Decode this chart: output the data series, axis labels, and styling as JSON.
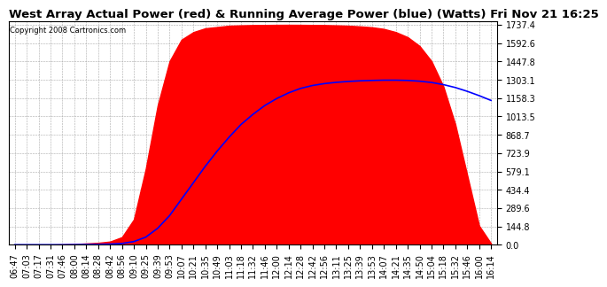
{
  "title": "West Array Actual Power (red) & Running Average Power (blue) (Watts) Fri Nov 21 16:25",
  "copyright": "Copyright 2008 Cartronics.com",
  "y_ticks": [
    0.0,
    144.8,
    289.6,
    434.4,
    579.1,
    723.9,
    868.7,
    1013.5,
    1158.3,
    1303.1,
    1447.8,
    1592.6,
    1737.4
  ],
  "x_labels": [
    "06:47",
    "07:03",
    "07:17",
    "07:31",
    "07:46",
    "08:00",
    "08:14",
    "08:28",
    "08:42",
    "08:56",
    "09:10",
    "09:25",
    "09:39",
    "09:53",
    "10:07",
    "10:21",
    "10:35",
    "10:49",
    "11:03",
    "11:18",
    "11:32",
    "11:46",
    "12:00",
    "12:14",
    "12:28",
    "12:42",
    "12:56",
    "13:11",
    "13:25",
    "13:39",
    "13:53",
    "14:07",
    "14:21",
    "14:35",
    "14:50",
    "15:04",
    "15:18",
    "15:32",
    "15:46",
    "16:00",
    "16:14"
  ],
  "bg_color": "#ffffff",
  "plot_bg_color": "#ffffff",
  "grid_color": "#aaaaaa",
  "red_color": "#ff0000",
  "blue_color": "#0000ff",
  "title_fontsize": 9.5,
  "tick_fontsize": 7,
  "ymax": 1737.4,
  "ymin": 0.0,
  "actual": [
    0,
    0,
    0,
    0,
    2,
    5,
    10,
    15,
    25,
    60,
    200,
    600,
    1100,
    1450,
    1620,
    1680,
    1710,
    1720,
    1730,
    1733,
    1735,
    1736,
    1737,
    1737.4,
    1737,
    1736,
    1735,
    1733,
    1730,
    1725,
    1718,
    1705,
    1680,
    1640,
    1570,
    1450,
    1250,
    950,
    550,
    150,
    10
  ],
  "blue": [
    0,
    0,
    0,
    0,
    0,
    1,
    2,
    3,
    5,
    10,
    25,
    60,
    130,
    230,
    360,
    490,
    620,
    740,
    850,
    950,
    1030,
    1100,
    1155,
    1200,
    1235,
    1258,
    1273,
    1283,
    1290,
    1295,
    1298,
    1300,
    1300,
    1298,
    1292,
    1282,
    1265,
    1242,
    1212,
    1178,
    1140
  ]
}
